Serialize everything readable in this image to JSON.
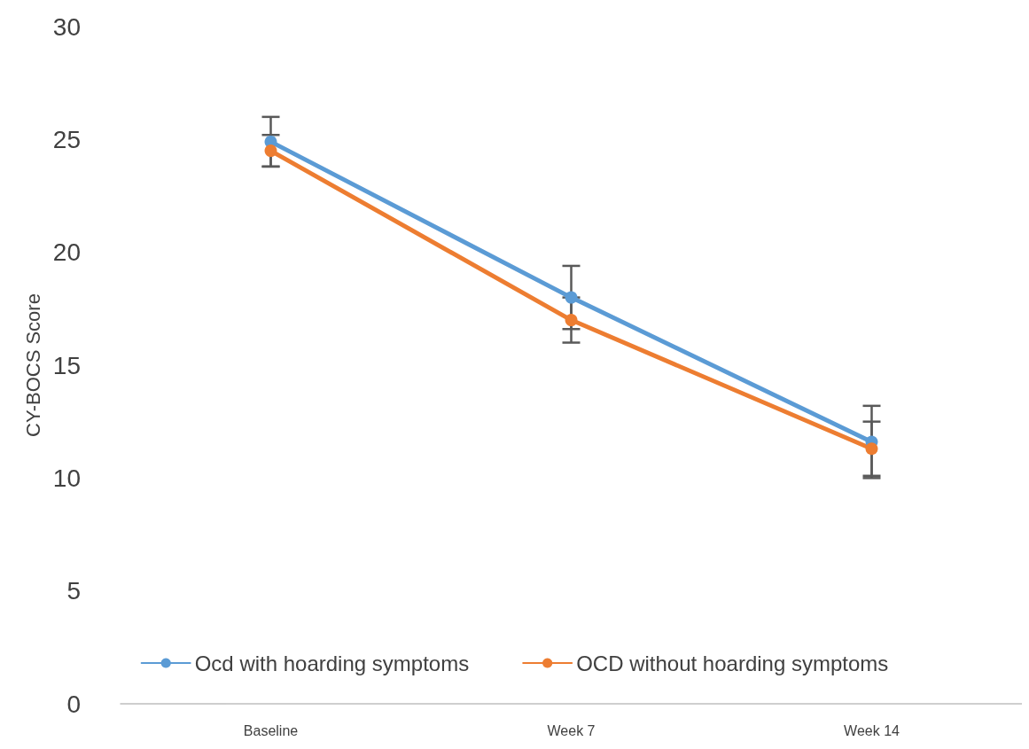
{
  "chart_data": {
    "type": "line",
    "ylabel": "CY-BOCS Score",
    "categories": [
      "Baseline",
      "Week 7",
      "Week 14"
    ],
    "series": [
      {
        "name": "Ocd with hoarding symptoms",
        "color": "#5b9bd5",
        "values": [
          24.9,
          18.0,
          11.6
        ],
        "errors": [
          1.1,
          1.4,
          1.6
        ]
      },
      {
        "name": "OCD without hoarding symptoms",
        "color": "#ed7d31",
        "values": [
          24.5,
          17.0,
          11.3
        ],
        "errors": [
          0.7,
          1.0,
          1.2
        ]
      }
    ],
    "ylim": [
      0,
      30
    ],
    "yticks": [
      0,
      5,
      10,
      15,
      20,
      25,
      30
    ],
    "grid": false,
    "legend": "bottom",
    "marker": "circle",
    "line_style": "solid"
  }
}
